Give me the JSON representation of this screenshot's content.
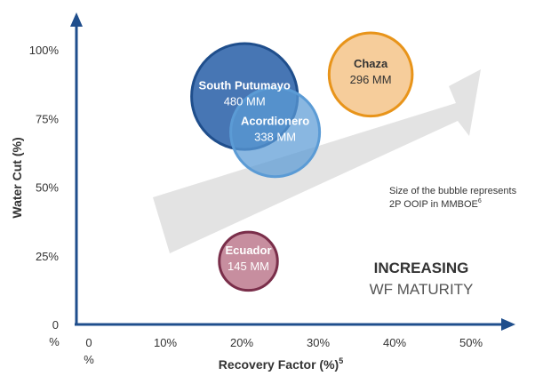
{
  "chart_data": {
    "type": "bubble",
    "xlabel": "Recovery Factor (%)",
    "xlabel_sup": "5",
    "ylabel": "Water Cut (%)",
    "x_ticks": [
      "0",
      "10%",
      "20%",
      "30%",
      "40%",
      "50%"
    ],
    "x_tick_sub": "%",
    "y_ticks": [
      "0",
      "25%",
      "50%",
      "75%",
      "100%"
    ],
    "y_tick_sub": "%",
    "xlim": [
      0,
      55
    ],
    "ylim": [
      0,
      110
    ],
    "bubbles": [
      {
        "name": "South Putumayo",
        "label": "480 MM",
        "size": 480,
        "x": 22,
        "y": 83,
        "fill": "#3d6fb0",
        "stroke": "#1f4e8c"
      },
      {
        "name": "Acordionero",
        "label": "338 MM",
        "size": 338,
        "x": 26,
        "y": 70,
        "fill": "#5b9bd5",
        "stroke": "#5b9bd5"
      },
      {
        "name": "Chaza",
        "label": "296 MM",
        "size": 296,
        "x": 38.5,
        "y": 91,
        "fill": "#f4c48a",
        "stroke": "#e8941a"
      },
      {
        "name": "Ecuador",
        "label": "145 MM",
        "size": 145,
        "x": 22.5,
        "y": 23,
        "fill": "#c4889a",
        "stroke": "#7a2e4a"
      }
    ],
    "note": {
      "line1": "Size of the bubble represents",
      "line2": "2P OOIP in MMBOE",
      "line2_sup": "6"
    },
    "maturity": {
      "line1": "INCREASING",
      "line2": "WF MATURITY"
    }
  }
}
